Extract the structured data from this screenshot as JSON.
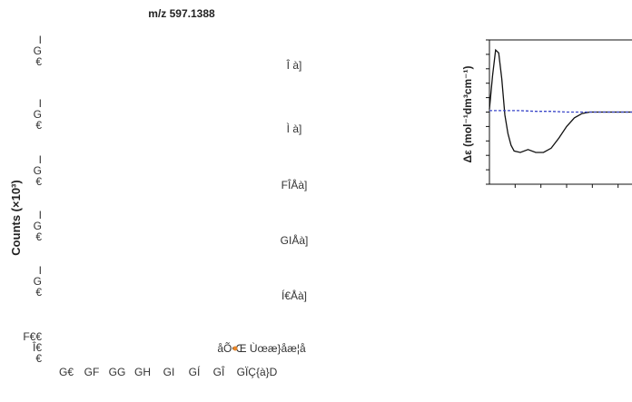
{
  "left_panel": {
    "title": "m/z 597.1388",
    "ylabel": "Counts (×10³)",
    "tracks": [
      {
        "axis_ticks": [
          "I",
          "G",
          "€"
        ],
        "label": "Î à]"
      },
      {
        "axis_ticks": [
          "I",
          "G",
          "€"
        ],
        "label": "Ì à]"
      },
      {
        "axis_ticks": [
          "I",
          "G",
          "€"
        ],
        "label": "FÎÅà]"
      },
      {
        "axis_ticks": [
          "I",
          "G",
          "€"
        ],
        "label": "GIÅà]"
      },
      {
        "axis_ticks": [
          "I",
          "G",
          "€"
        ],
        "label": "Í€Åà]"
      },
      {
        "axis_ticks": [
          "F€€",
          "Î€",
          "€"
        ],
        "label": "åÕ•Œ Ùœæ}åæ¦å",
        "marker_color": "#e8862a"
      }
    ],
    "xticks": [
      "G€",
      "GF",
      "GG",
      "GH",
      "GI",
      "GÍ",
      "GÎ",
      "GÏÇ{à}D"
    ]
  },
  "right_panel": {
    "ylabel": "Δε (mol⁻¹dm³cm⁻¹)"
  },
  "chart_data": [
    {
      "type": "line",
      "title": "m/z 597.1388",
      "xlabel": "",
      "ylabel": "Counts (×10³)",
      "series": []
    },
    {
      "type": "line",
      "title": "",
      "xlabel": "",
      "ylabel": "Δε (mol⁻¹dm³cm⁻¹)",
      "xlim": [
        0,
        100
      ],
      "ylim": [
        -5,
        5
      ],
      "series": [
        {
          "color": "#111111",
          "style": "solid",
          "x": [
            0,
            2,
            4,
            6,
            8,
            10,
            12,
            14,
            16,
            20,
            25,
            30,
            35,
            40,
            45,
            50,
            55,
            60,
            65,
            70,
            75,
            80,
            85,
            90,
            95,
            100
          ],
          "y": [
            0.2,
            2.5,
            4.3,
            4.1,
            2.3,
            -0.2,
            -1.5,
            -2.3,
            -2.7,
            -2.8,
            -2.6,
            -2.8,
            -2.8,
            -2.5,
            -1.8,
            -1.0,
            -0.4,
            -0.1,
            0.0,
            0.0,
            0.0,
            0.0,
            0.0,
            0.0,
            0.0,
            0.0
          ]
        },
        {
          "color": "#3a46c8",
          "style": "dashed",
          "x": [
            0,
            10,
            20,
            30,
            40,
            50,
            60,
            70,
            80,
            90,
            100
          ],
          "y": [
            0.1,
            0.1,
            0.1,
            0.05,
            0.05,
            0.0,
            0.0,
            0.0,
            0.0,
            0.0,
            0.0
          ]
        }
      ]
    }
  ]
}
